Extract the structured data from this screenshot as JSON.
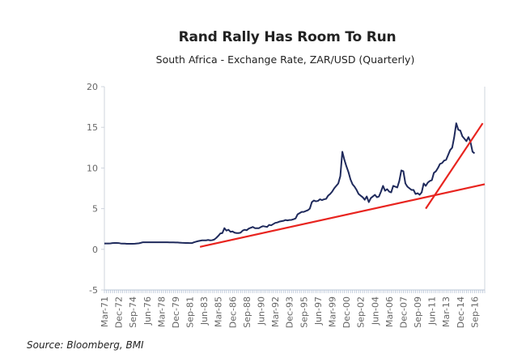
{
  "chart_data": {
    "type": "line",
    "title": "Rand Rally Has Room To Run",
    "subtitle": "South Africa - Exchange Rate, ZAR/USD (Quarterly)",
    "source": "Source: Bloomberg, BMI",
    "xlabel": "",
    "ylabel": "",
    "ylim": [
      -5,
      20
    ],
    "yticks": [
      -5,
      0,
      5,
      10,
      15,
      20
    ],
    "grid": false,
    "x_start": "Mar-71",
    "x_frequency": "quarterly",
    "x_tick_labels": [
      "Mar-71",
      "Dec-72",
      "Sep-74",
      "Jun-76",
      "Mar-78",
      "Dec-79",
      "Sep-81",
      "Jun-83",
      "Mar-85",
      "Dec-86",
      "Sep-88",
      "Jun-90",
      "Mar-92",
      "Dec-93",
      "Sep-95",
      "Jun-97",
      "Mar-99",
      "Dec-00",
      "Sep-02",
      "Jun-04",
      "Mar-06",
      "Dec-07",
      "Sep-09",
      "Jun-11",
      "Mar-13",
      "Dec-14",
      "Sep-16"
    ],
    "series": [
      {
        "name": "ZAR/USD",
        "color": "#1f2a5c",
        "values": [
          0.71,
          0.71,
          0.72,
          0.73,
          0.76,
          0.78,
          0.78,
          0.77,
          0.72,
          0.7,
          0.7,
          0.68,
          0.68,
          0.68,
          0.68,
          0.69,
          0.72,
          0.74,
          0.8,
          0.87,
          0.87,
          0.87,
          0.87,
          0.87,
          0.87,
          0.87,
          0.87,
          0.87,
          0.87,
          0.87,
          0.87,
          0.86,
          0.85,
          0.85,
          0.85,
          0.84,
          0.84,
          0.82,
          0.8,
          0.79,
          0.78,
          0.78,
          0.77,
          0.76,
          0.86,
          0.93,
          1.0,
          1.05,
          1.1,
          1.1,
          1.1,
          1.15,
          1.1,
          1.12,
          1.2,
          1.4,
          1.65,
          1.95,
          2.0,
          2.6,
          2.3,
          2.4,
          2.15,
          2.2,
          2.05,
          2.0,
          2.0,
          2.05,
          2.3,
          2.4,
          2.35,
          2.55,
          2.65,
          2.75,
          2.6,
          2.6,
          2.6,
          2.75,
          2.85,
          2.8,
          2.75,
          3.0,
          2.95,
          3.1,
          3.25,
          3.3,
          3.4,
          3.45,
          3.5,
          3.6,
          3.55,
          3.6,
          3.62,
          3.7,
          3.8,
          4.3,
          4.45,
          4.6,
          4.6,
          4.7,
          4.8,
          5.0,
          5.8,
          6.0,
          5.9,
          5.95,
          6.15,
          6.05,
          6.15,
          6.2,
          6.6,
          6.8,
          7.1,
          7.5,
          7.8,
          8.1,
          9.0,
          12.0,
          11.0,
          10.2,
          9.5,
          8.6,
          8.0,
          7.7,
          7.3,
          6.8,
          6.6,
          6.4,
          6.1,
          6.5,
          5.8,
          6.3,
          6.5,
          6.7,
          6.4,
          6.5,
          7.1,
          7.8,
          7.2,
          7.4,
          7.1,
          7.0,
          7.8,
          7.7,
          7.6,
          8.4,
          9.7,
          9.6,
          8.1,
          7.7,
          7.5,
          7.3,
          7.3,
          6.8,
          6.9,
          6.7,
          7.0,
          8.1,
          7.8,
          8.2,
          8.4,
          8.5,
          9.4,
          9.6,
          10.0,
          10.5,
          10.6,
          10.9,
          11.0,
          11.6,
          12.2,
          12.5,
          13.8,
          15.5,
          14.7,
          14.6,
          13.9,
          13.6,
          13.3,
          13.8,
          13.2,
          12.0,
          11.8
        ]
      }
    ],
    "trendlines": [
      {
        "name": "long-term-support",
        "color": "#e8241f",
        "from": {
          "x": "Dec-82",
          "y": 0.3
        },
        "to": {
          "x": "Dec-17",
          "y": 8.0
        }
      },
      {
        "name": "short-term-trend",
        "color": "#e8241f",
        "from": {
          "x": "Sep-10",
          "y": 5.0
        },
        "to": {
          "x": "Sep-17",
          "y": 15.5
        }
      }
    ]
  }
}
